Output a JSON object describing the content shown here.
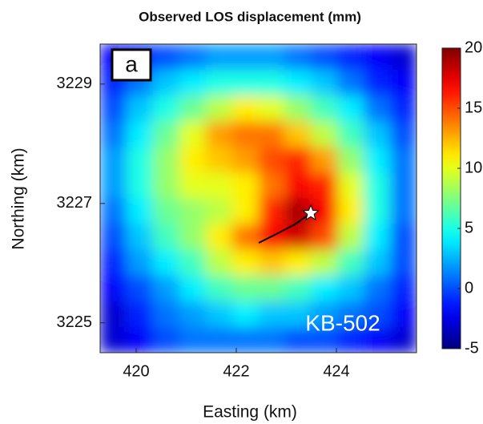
{
  "chart_data": {
    "type": "heatmap",
    "title": "Observed LOS displacement (mm)",
    "x_label": "Easting (km)",
    "y_label": "Northing (km)",
    "panel_label": "a",
    "annotation": "KB-502",
    "xlim": [
      419.28,
      425.6
    ],
    "ylim": [
      3224.5,
      3229.67
    ],
    "xticks": [
      420,
      422,
      424
    ],
    "yticks": [
      3225,
      3227,
      3229
    ],
    "colormap": "jet",
    "clim": [
      -5,
      20
    ],
    "colorbar_ticks": [
      -5,
      0,
      5,
      10,
      15,
      20
    ],
    "values": [
      [
        -2,
        -1,
        0,
        1,
        2,
        2,
        2,
        1,
        0,
        -1,
        -2,
        -3
      ],
      [
        -1,
        1,
        3,
        4,
        5,
        5,
        5,
        4,
        3,
        1,
        -1,
        -2
      ],
      [
        0,
        3,
        5,
        7,
        9,
        11,
        10,
        8,
        6,
        4,
        1,
        -1
      ],
      [
        1,
        4,
        7,
        10,
        13,
        14,
        14,
        12,
        9,
        6,
        3,
        0
      ],
      [
        2,
        5,
        8,
        11,
        12,
        13,
        15,
        16,
        13,
        8,
        4,
        1
      ],
      [
        2,
        5,
        8,
        10,
        10,
        11,
        14,
        17,
        16,
        10,
        5,
        1
      ],
      [
        1,
        4,
        7,
        8,
        9,
        11,
        16,
        19,
        17,
        11,
        5,
        1
      ],
      [
        0,
        3,
        6,
        8,
        11,
        14,
        17,
        18,
        15,
        9,
        4,
        0
      ],
      [
        -1,
        2,
        4,
        6,
        9,
        11,
        12,
        11,
        9,
        6,
        3,
        0
      ],
      [
        -2,
        0,
        2,
        4,
        6,
        7,
        7,
        6,
        4,
        3,
        1,
        -1
      ],
      [
        -3,
        -1,
        1,
        2,
        3,
        4,
        3,
        3,
        2,
        1,
        0,
        -2
      ],
      [
        -3,
        -2,
        0,
        1,
        1,
        1,
        1,
        0,
        0,
        -1,
        -2,
        -3
      ]
    ]
  }
}
